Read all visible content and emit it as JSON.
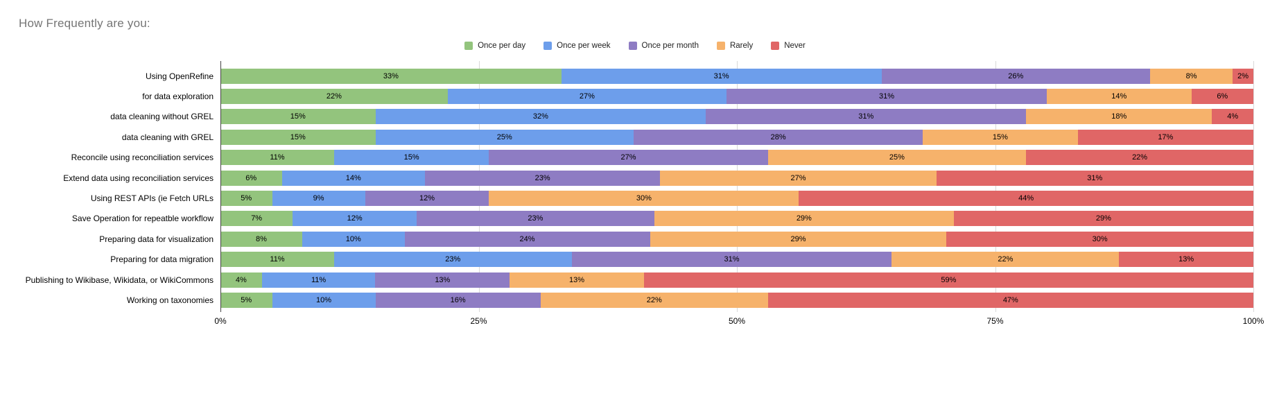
{
  "title": "How Frequently are you:",
  "axis": {
    "ticks": [
      {
        "label": "0%",
        "pos": 0
      },
      {
        "label": "25%",
        "pos": 25
      },
      {
        "label": "50%",
        "pos": 50
      },
      {
        "label": "75%",
        "pos": 75
      },
      {
        "label": "100%",
        "pos": 100
      }
    ]
  },
  "chart_data": {
    "type": "bar",
    "orientation": "horizontal-stacked",
    "title": "How Frequently are you:",
    "xlabel": "",
    "ylabel": "",
    "xlim": [
      0,
      100
    ],
    "unit": "%",
    "grid": true,
    "legend_position": "top",
    "categories": [
      "Using OpenRefine",
      "for data exploration",
      "data cleaning without GREL",
      "data cleaning with GREL",
      "Reconcile using reconciliation services",
      "Extend data using reconciliation services",
      "Using REST APIs (ie Fetch URLs",
      "Save Operation for repeatble workflow",
      "Preparing data for visualization",
      "Preparing for data migration",
      "Publishing to Wikibase, Wikidata, or WikiCommons",
      "Working on taxonomies"
    ],
    "series": [
      {
        "name": "Once per day",
        "color": "#93c47d",
        "values": [
          33,
          22,
          15,
          15,
          11,
          6,
          5,
          7,
          8,
          11,
          4,
          5
        ]
      },
      {
        "name": "Once per week",
        "color": "#6d9eeb",
        "values": [
          31,
          27,
          32,
          25,
          15,
          14,
          9,
          12,
          10,
          23,
          11,
          10
        ]
      },
      {
        "name": "Once per month",
        "color": "#8e7cc3",
        "values": [
          26,
          31,
          31,
          28,
          27,
          23,
          12,
          23,
          24,
          31,
          13,
          16
        ]
      },
      {
        "name": "Rarely",
        "color": "#f6b26b",
        "values": [
          8,
          14,
          18,
          15,
          25,
          27,
          30,
          29,
          29,
          22,
          13,
          22
        ]
      },
      {
        "name": "Never",
        "color": "#e06666",
        "values": [
          2,
          6,
          4,
          17,
          22,
          31,
          44,
          29,
          30,
          13,
          59,
          47
        ]
      }
    ]
  }
}
